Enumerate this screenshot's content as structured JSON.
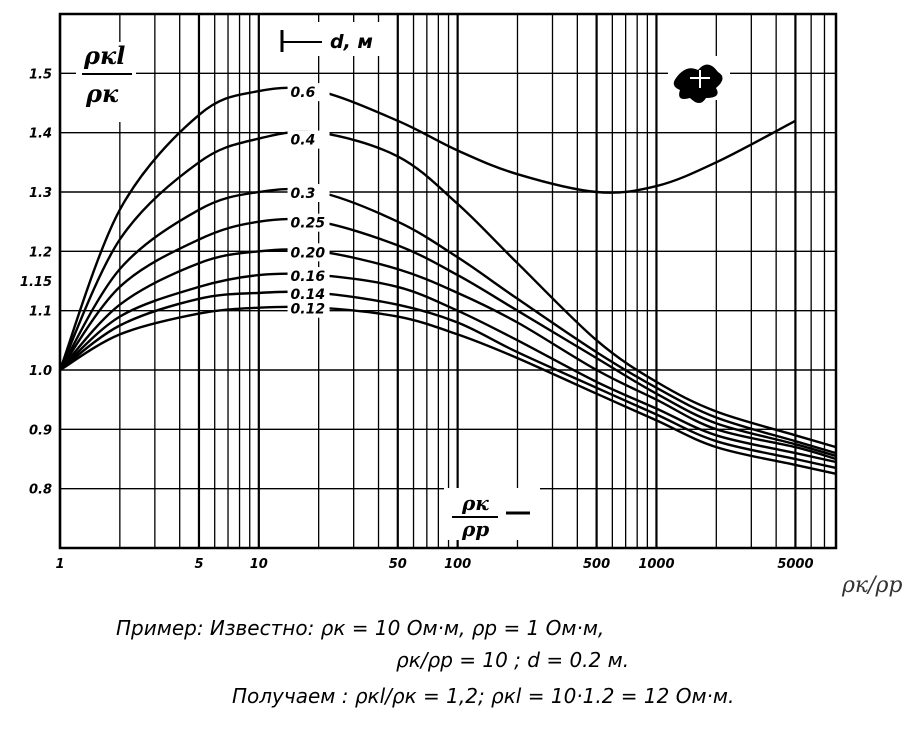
{
  "chart_data": {
    "type": "line",
    "x_scale": "log",
    "xlim": [
      1,
      8000
    ],
    "ylim": [
      0.7,
      1.6
    ],
    "grid": true,
    "x_ticks": [
      {
        "value": 1,
        "label": "1"
      },
      {
        "value": 5,
        "label": "5"
      },
      {
        "value": 10,
        "label": "10"
      },
      {
        "value": 50,
        "label": "50"
      },
      {
        "value": 100,
        "label": "100"
      },
      {
        "value": 500,
        "label": "500"
      },
      {
        "value": 1000,
        "label": "1000"
      },
      {
        "value": 5000,
        "label": "5000"
      }
    ],
    "y_ticks": [
      {
        "value": 1.5,
        "label": "1.5"
      },
      {
        "value": 1.4,
        "label": "1.4"
      },
      {
        "value": 1.3,
        "label": "1.3"
      },
      {
        "value": 1.2,
        "label": "1.2"
      },
      {
        "value": 1.15,
        "label": "1.15"
      },
      {
        "value": 1.1,
        "label": "1.1"
      },
      {
        "value": 1.0,
        "label": "1.0"
      },
      {
        "value": 0.9,
        "label": "0.9"
      },
      {
        "value": 0.8,
        "label": "0.8"
      }
    ],
    "ylabel_top": "ρкl",
    "ylabel_bottom": "ρк",
    "xlabel_inside_top": "ρк",
    "xlabel_inside_bottom": "ρр",
    "xlabel_outside": "ρк/ρр",
    "legend_title": "d, м",
    "series": [
      {
        "name": "0.6",
        "x": [
          1,
          2,
          5,
          10,
          20,
          50,
          100,
          200,
          500,
          1000,
          2000,
          5000
        ],
        "y": [
          1.0,
          1.27,
          1.43,
          1.47,
          1.47,
          1.42,
          1.37,
          1.33,
          1.3,
          1.31,
          1.35,
          1.42
        ]
      },
      {
        "name": "0.4",
        "x": [
          1,
          2,
          5,
          10,
          20,
          50,
          100,
          200,
          500,
          1000,
          2000,
          5000,
          8000
        ],
        "y": [
          1.0,
          1.22,
          1.35,
          1.39,
          1.4,
          1.36,
          1.28,
          1.18,
          1.05,
          0.98,
          0.93,
          0.89,
          0.87
        ]
      },
      {
        "name": "0.3",
        "x": [
          1,
          2,
          5,
          10,
          20,
          50,
          100,
          200,
          500,
          1000,
          2000,
          5000,
          8000
        ],
        "y": [
          1.0,
          1.17,
          1.27,
          1.3,
          1.3,
          1.25,
          1.19,
          1.12,
          1.03,
          0.97,
          0.92,
          0.88,
          0.86
        ]
      },
      {
        "name": "0.25",
        "x": [
          1,
          2,
          5,
          10,
          20,
          50,
          100,
          200,
          500,
          1000,
          2000,
          5000,
          8000
        ],
        "y": [
          1.0,
          1.14,
          1.22,
          1.25,
          1.25,
          1.21,
          1.16,
          1.1,
          1.02,
          0.96,
          0.91,
          0.875,
          0.855
        ]
      },
      {
        "name": "0.20",
        "x": [
          1,
          2,
          5,
          10,
          20,
          50,
          100,
          200,
          500,
          1000,
          2000,
          5000,
          8000
        ],
        "y": [
          1.0,
          1.11,
          1.18,
          1.2,
          1.2,
          1.17,
          1.13,
          1.08,
          1.0,
          0.95,
          0.9,
          0.87,
          0.85
        ]
      },
      {
        "name": "0.16",
        "x": [
          1,
          2,
          5,
          10,
          20,
          50,
          100,
          200,
          500,
          1000,
          2000,
          5000,
          8000
        ],
        "y": [
          1.0,
          1.09,
          1.14,
          1.16,
          1.16,
          1.14,
          1.1,
          1.05,
          0.98,
          0.935,
          0.89,
          0.86,
          0.845
        ]
      },
      {
        "name": "0.14",
        "x": [
          1,
          2,
          5,
          10,
          20,
          50,
          100,
          200,
          500,
          1000,
          2000,
          5000,
          8000
        ],
        "y": [
          1.0,
          1.075,
          1.12,
          1.13,
          1.13,
          1.11,
          1.08,
          1.03,
          0.97,
          0.925,
          0.88,
          0.85,
          0.835
        ]
      },
      {
        "name": "0.12",
        "x": [
          1,
          2,
          5,
          10,
          20,
          50,
          100,
          200,
          500,
          1000,
          2000,
          5000,
          8000
        ],
        "y": [
          1.0,
          1.06,
          1.095,
          1.105,
          1.105,
          1.09,
          1.06,
          1.02,
          0.96,
          0.915,
          0.87,
          0.84,
          0.825
        ]
      }
    ]
  },
  "example": {
    "line1": "Пример: Известно: ρк = 10 Ом·м, ρр = 1 Ом·м,",
    "line2": "ρк/ρр = 10 ;   d = 0.2 м.",
    "line3": "Получаем : ρкl/ρк = 1,2;    ρкl = 10·1.2 = 12 Ом·м."
  }
}
